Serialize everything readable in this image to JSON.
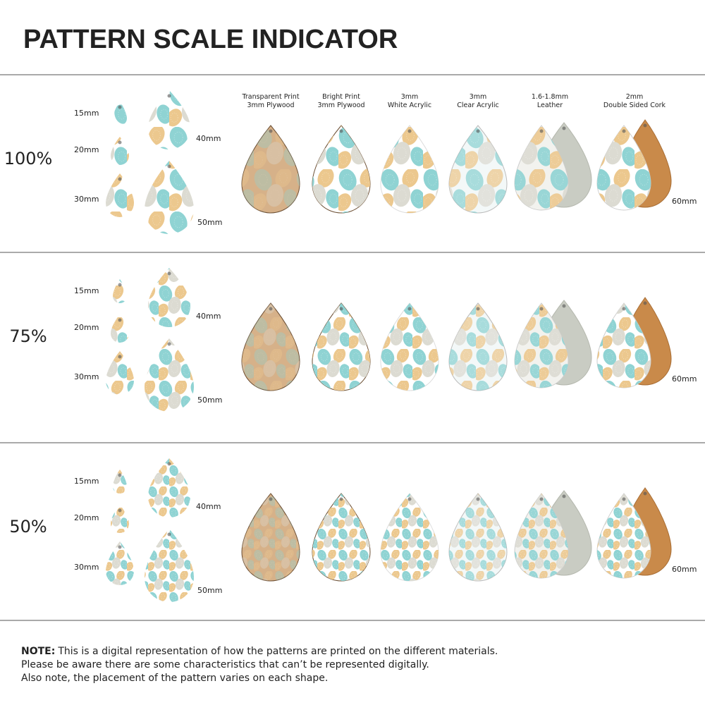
{
  "header": {
    "title": "PATTERN SCALE INDICATOR"
  },
  "materials": [
    {
      "line1": "Transparent Print",
      "line2": "3mm Plywood"
    },
    {
      "line1": "Bright Print",
      "line2": "3mm Plywood"
    },
    {
      "line1": "3mm",
      "line2": "White Acrylic"
    },
    {
      "line1": "3mm",
      "line2": "Clear Acrylic"
    },
    {
      "line1": "1.6-1.8mm",
      "line2": "Leather"
    },
    {
      "line1": "2mm",
      "line2": "Double Sided Cork"
    }
  ],
  "rows": [
    {
      "scale": "100%",
      "sizes": [
        "15mm",
        "20mm",
        "30mm",
        "40mm",
        "50mm"
      ],
      "large_size": "60mm"
    },
    {
      "scale": "75%",
      "sizes": [
        "15mm",
        "20mm",
        "30mm",
        "40mm",
        "50mm"
      ],
      "large_size": "60mm"
    },
    {
      "scale": "50%",
      "sizes": [
        "15mm",
        "20mm",
        "30mm",
        "40mm",
        "50mm"
      ],
      "large_size": "60mm"
    }
  ],
  "note": {
    "label": "NOTE:",
    "lines": [
      "This is a digital representation of how the patterns are printed on the different materials.",
      "Please be aware there are some characteristics that can’t be represented digitally.",
      "Also note, the placement of the pattern varies on each shape."
    ]
  }
}
